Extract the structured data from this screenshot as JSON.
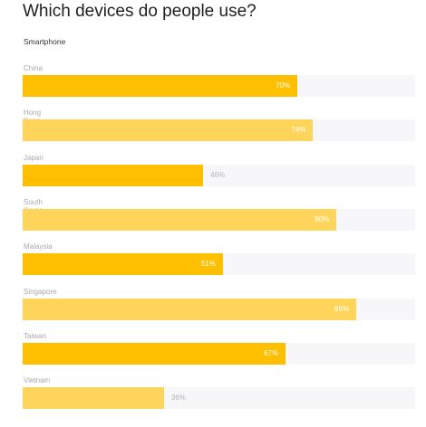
{
  "title": "Which devices do people use?",
  "subtitle": "Smartphone",
  "colors": {
    "dark": "#fdbf00",
    "light": "#fed45a",
    "track": "#f7f7fa"
  },
  "chart_data": {
    "type": "bar",
    "orientation": "horizontal",
    "title": "Which devices do people use?",
    "subtitle": "Smartphone",
    "categories": [
      "China",
      "Hong Kong",
      "Japan",
      "South Korea",
      "Malaysia",
      "Singapore",
      "Taiwan",
      "Vietnam"
    ],
    "values": [
      70,
      74,
      46,
      80,
      51,
      85,
      67,
      36
    ],
    "labels": [
      "70%",
      "74%",
      "46%",
      "80%",
      "51%",
      "85%",
      "67%",
      "36%"
    ],
    "shades": [
      "dark",
      "light",
      "dark",
      "light",
      "dark",
      "light",
      "dark",
      "light"
    ],
    "xlim": [
      0,
      100
    ],
    "unit": "%"
  }
}
